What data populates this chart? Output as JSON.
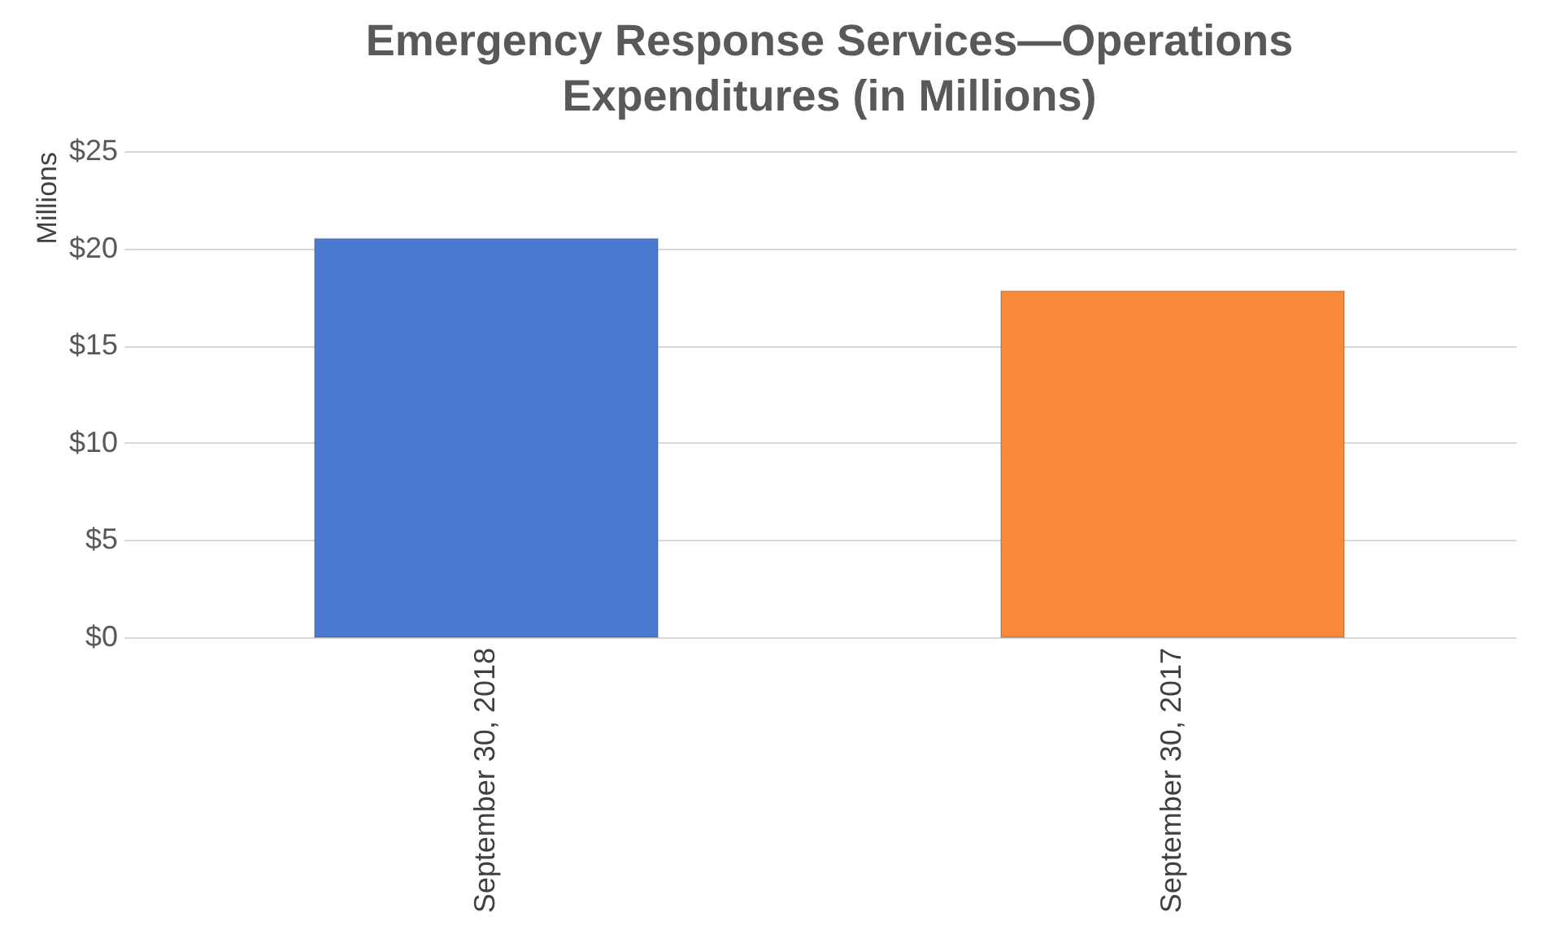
{
  "chart_data": {
    "type": "bar",
    "title": "Emergency Response Services—Operations Expenditures (in Millions)",
    "ylabel": "Millions",
    "categories": [
      "September 30, 2018",
      "September 30, 2017"
    ],
    "values": [
      20.5,
      17.8
    ],
    "colors": [
      "#4a7bd0",
      "#f88a3a"
    ],
    "ylim": [
      0,
      25
    ],
    "yticks": [
      {
        "value": 0,
        "label": "$0"
      },
      {
        "value": 5,
        "label": "$5"
      },
      {
        "value": 10,
        "label": "$10"
      },
      {
        "value": 15,
        "label": "$15"
      },
      {
        "value": 20,
        "label": "$20"
      },
      {
        "value": 25,
        "label": "$25"
      }
    ],
    "grid": "y"
  }
}
